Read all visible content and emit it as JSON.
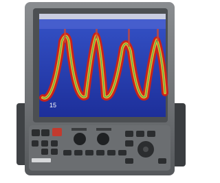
{
  "screen": {
    "depth_label": "15"
  }
}
